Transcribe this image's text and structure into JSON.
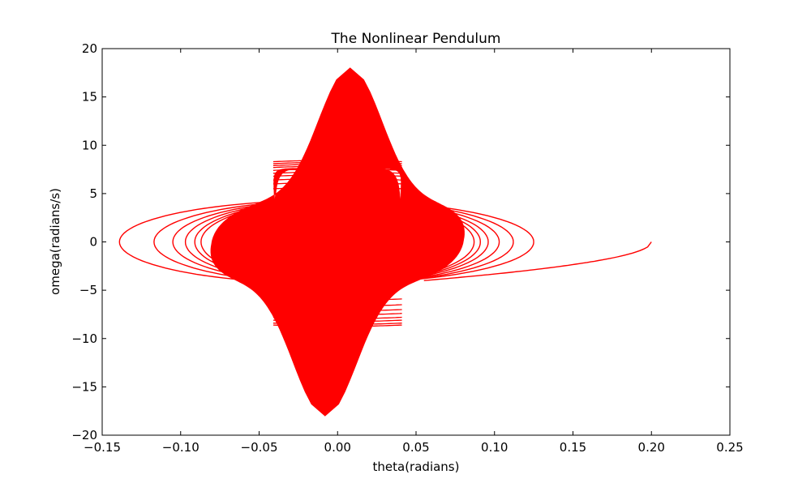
{
  "chart_data": {
    "type": "line",
    "title": "The Nonlinear Pendulum",
    "xlabel": "theta(radians)",
    "ylabel": "omega(radians/s)",
    "xlim": [
      -0.15,
      0.25
    ],
    "ylim": [
      -20,
      20
    ],
    "xticks": [
      -0.15,
      -0.1,
      -0.05,
      0.0,
      0.05,
      0.1,
      0.15,
      0.2,
      0.25
    ],
    "xtick_labels": [
      "−0.15",
      "−0.10",
      "−0.05",
      "0.00",
      "0.05",
      "0.10",
      "0.15",
      "0.20",
      "0.25"
    ],
    "yticks": [
      -20,
      -15,
      -10,
      -5,
      0,
      5,
      10,
      15,
      20
    ],
    "ytick_labels": [
      "−20",
      "−15",
      "−10",
      "−5",
      "0",
      "5",
      "10",
      "15",
      "20"
    ],
    "grid": false,
    "series": [
      {
        "color": "#ff0000",
        "start_point": [
          0.2,
          0.0
        ],
        "early_loops": [
          {
            "theta_min": -0.139,
            "theta_max": 0.125,
            "omega_max": 4.3,
            "omega_min": -4.3
          },
          {
            "theta_min": -0.117,
            "theta_max": 0.112,
            "omega_max": 4.3,
            "omega_min": -4.3
          },
          {
            "theta_min": -0.105,
            "theta_max": 0.103,
            "omega_max": 4.3,
            "omega_min": -4.3
          },
          {
            "theta_min": -0.097,
            "theta_max": 0.096,
            "omega_max": 4.3,
            "omega_min": -4.3
          },
          {
            "theta_min": -0.091,
            "theta_max": 0.091,
            "omega_max": 4.3,
            "omega_min": -4.3
          },
          {
            "theta_min": -0.087,
            "theta_max": 0.087,
            "omega_max": 4.3,
            "omega_min": -4.3
          }
        ],
        "dense_band": {
          "theta_outer": 0.08,
          "theta_inner": 0.04,
          "omega_peak": 18.0,
          "omega_shoulder": 4.5
        },
        "inner_arcs_top": [
          5.5,
          6.0,
          6.4,
          6.8,
          7.1,
          7.4,
          7.7,
          7.9,
          8.1,
          8.3
        ],
        "inner_arcs_bottom": [
          -4.7,
          -5.9,
          -6.5,
          -7.0,
          -7.4,
          -7.8,
          -8.1,
          -8.4,
          -8.6
        ]
      }
    ]
  }
}
